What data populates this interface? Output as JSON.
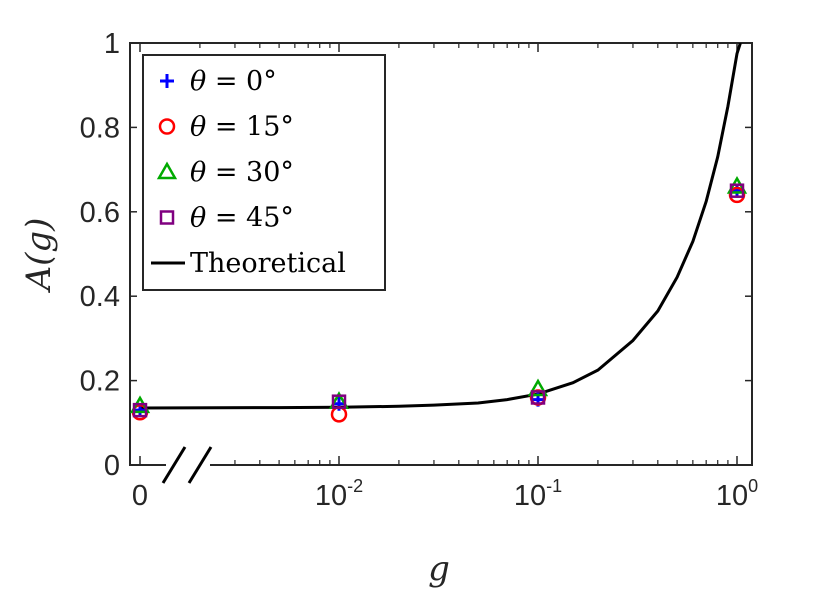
{
  "chart_data": {
    "type": "scatter",
    "xscale": "log-with-zero-break",
    "xlabel": "g",
    "ylabel": "A(g)",
    "ylim": [
      0,
      1
    ],
    "xlim_log": [
      0.01,
      1
    ],
    "x_ticks": [
      {
        "value": 0,
        "base": "0",
        "exp": ""
      },
      {
        "value": 0.01,
        "base": "10",
        "exp": "-2"
      },
      {
        "value": 0.1,
        "base": "10",
        "exp": "-1"
      },
      {
        "value": 1,
        "base": "10",
        "exp": "0"
      }
    ],
    "y_ticks": [
      {
        "value": 0,
        "label": "0"
      },
      {
        "value": 0.2,
        "label": "0.2"
      },
      {
        "value": 0.4,
        "label": "0.4"
      },
      {
        "value": 0.6,
        "label": "0.6"
      },
      {
        "value": 0.8,
        "label": "0.8"
      },
      {
        "value": 1.0,
        "label": "1"
      }
    ],
    "grid": false,
    "legend_position": "top-left",
    "series": [
      {
        "name": "θ = 0°",
        "name_var": "θ",
        "name_rest": " = 0°",
        "marker": "plus",
        "color": "#0000ff",
        "points": [
          [
            0,
            0.13
          ],
          [
            0.01,
            0.145
          ],
          [
            0.1,
            0.155
          ],
          [
            1,
            0.65
          ]
        ]
      },
      {
        "name": "θ = 15°",
        "name_var": "θ",
        "name_rest": " = 15°",
        "marker": "circle",
        "color": "#ff0000",
        "points": [
          [
            0,
            0.125
          ],
          [
            0.01,
            0.12
          ],
          [
            0.1,
            0.16
          ],
          [
            1,
            0.64
          ]
        ]
      },
      {
        "name": "θ = 30°",
        "name_var": "θ",
        "name_rest": " = 30°",
        "marker": "triangle",
        "color": "#00aa00",
        "points": [
          [
            0,
            0.14
          ],
          [
            0.01,
            0.15
          ],
          [
            0.1,
            0.18
          ],
          [
            1,
            0.66
          ]
        ]
      },
      {
        "name": "θ = 45°",
        "name_var": "θ",
        "name_rest": " = 45°",
        "marker": "square",
        "color": "#800080",
        "points": [
          [
            0,
            0.13
          ],
          [
            0.01,
            0.15
          ],
          [
            0.1,
            0.16
          ],
          [
            1,
            0.65
          ]
        ]
      }
    ],
    "theoretical": {
      "name": "Theoretical",
      "color": "#000000",
      "points": [
        [
          0,
          0.135
        ],
        [
          0.005,
          0.136
        ],
        [
          0.01,
          0.137
        ],
        [
          0.02,
          0.139
        ],
        [
          0.03,
          0.142
        ],
        [
          0.05,
          0.147
        ],
        [
          0.07,
          0.155
        ],
        [
          0.1,
          0.168
        ],
        [
          0.15,
          0.195
        ],
        [
          0.2,
          0.225
        ],
        [
          0.3,
          0.295
        ],
        [
          0.4,
          0.365
        ],
        [
          0.5,
          0.445
        ],
        [
          0.6,
          0.53
        ],
        [
          0.7,
          0.625
        ],
        [
          0.8,
          0.73
        ],
        [
          0.9,
          0.85
        ],
        [
          1.0,
          0.975
        ],
        [
          1.04,
          1.0
        ]
      ]
    }
  }
}
